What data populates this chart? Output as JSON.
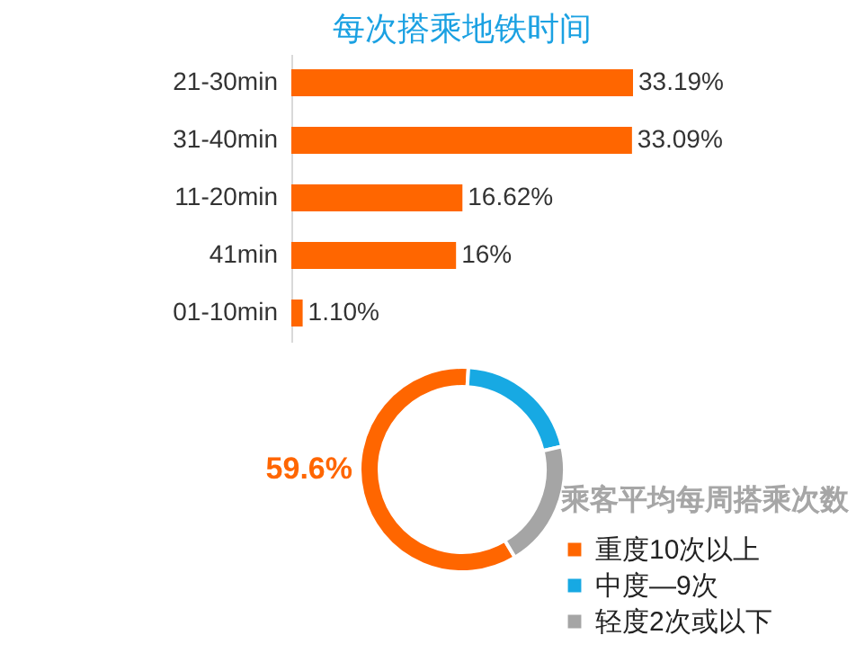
{
  "chart_data": [
    {
      "type": "bar",
      "orientation": "horizontal",
      "title": "每次搭乘地铁时间",
      "categories": [
        "21-30min",
        "31-40min",
        "11-20min",
        "41min",
        "01-10min"
      ],
      "values": [
        33.19,
        33.09,
        16.62,
        16,
        1.1
      ],
      "value_labels": [
        "33.19%",
        "33.09%",
        "16.62%",
        "16%",
        "1.10%"
      ],
      "color": "#ff6600",
      "tick_labels": "y"
    },
    {
      "type": "donut",
      "legend_title": "乘客平均每周搭乘次数",
      "categories": [
        "重度10次以上",
        "中度—9次",
        "轻度2次或以下"
      ],
      "values": [
        59.6,
        20.4,
        20.0
      ],
      "colors": [
        "#ff6600",
        "#17a9e3",
        "#a5a5a5"
      ],
      "value_labels": [
        "59.6%",
        null,
        null
      ],
      "legend": "right"
    }
  ]
}
